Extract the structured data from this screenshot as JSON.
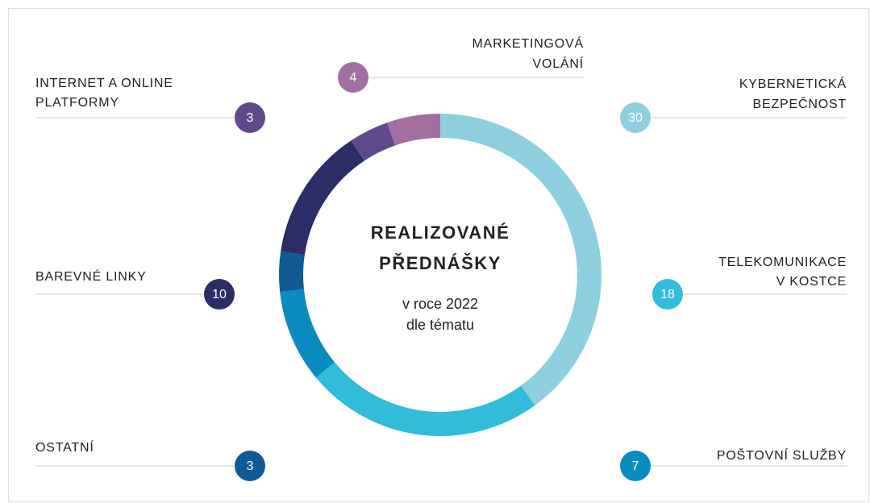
{
  "chart_data": {
    "type": "donut",
    "title": [
      "REALIZOVANÉ",
      "PŘEDNÁŠKY"
    ],
    "subtitle": [
      "v roce 2022",
      "dle tématu"
    ],
    "categories": [
      [
        "KYBERNETICKÁ",
        "BEZPEČNOST"
      ],
      [
        "TELEKOMUNIKACE",
        "V KOSTCE"
      ],
      [
        "POŠTOVNÍ SLUŽBY"
      ],
      [
        "OSTATNÍ"
      ],
      [
        "BAREVNÉ LINKY"
      ],
      [
        "INTERNET A ONLINE",
        "PLATFORMY"
      ],
      [
        "MARKETINGOVÁ",
        "VOLÁNÍ"
      ]
    ],
    "values": [
      30,
      18,
      7,
      3,
      10,
      3,
      4
    ],
    "colors": [
      "#8ecfdf",
      "#31bcd9",
      "#0a8bbf",
      "#0f5a94",
      "#2a2d66",
      "#5e4a8a",
      "#a26fa3"
    ]
  }
}
